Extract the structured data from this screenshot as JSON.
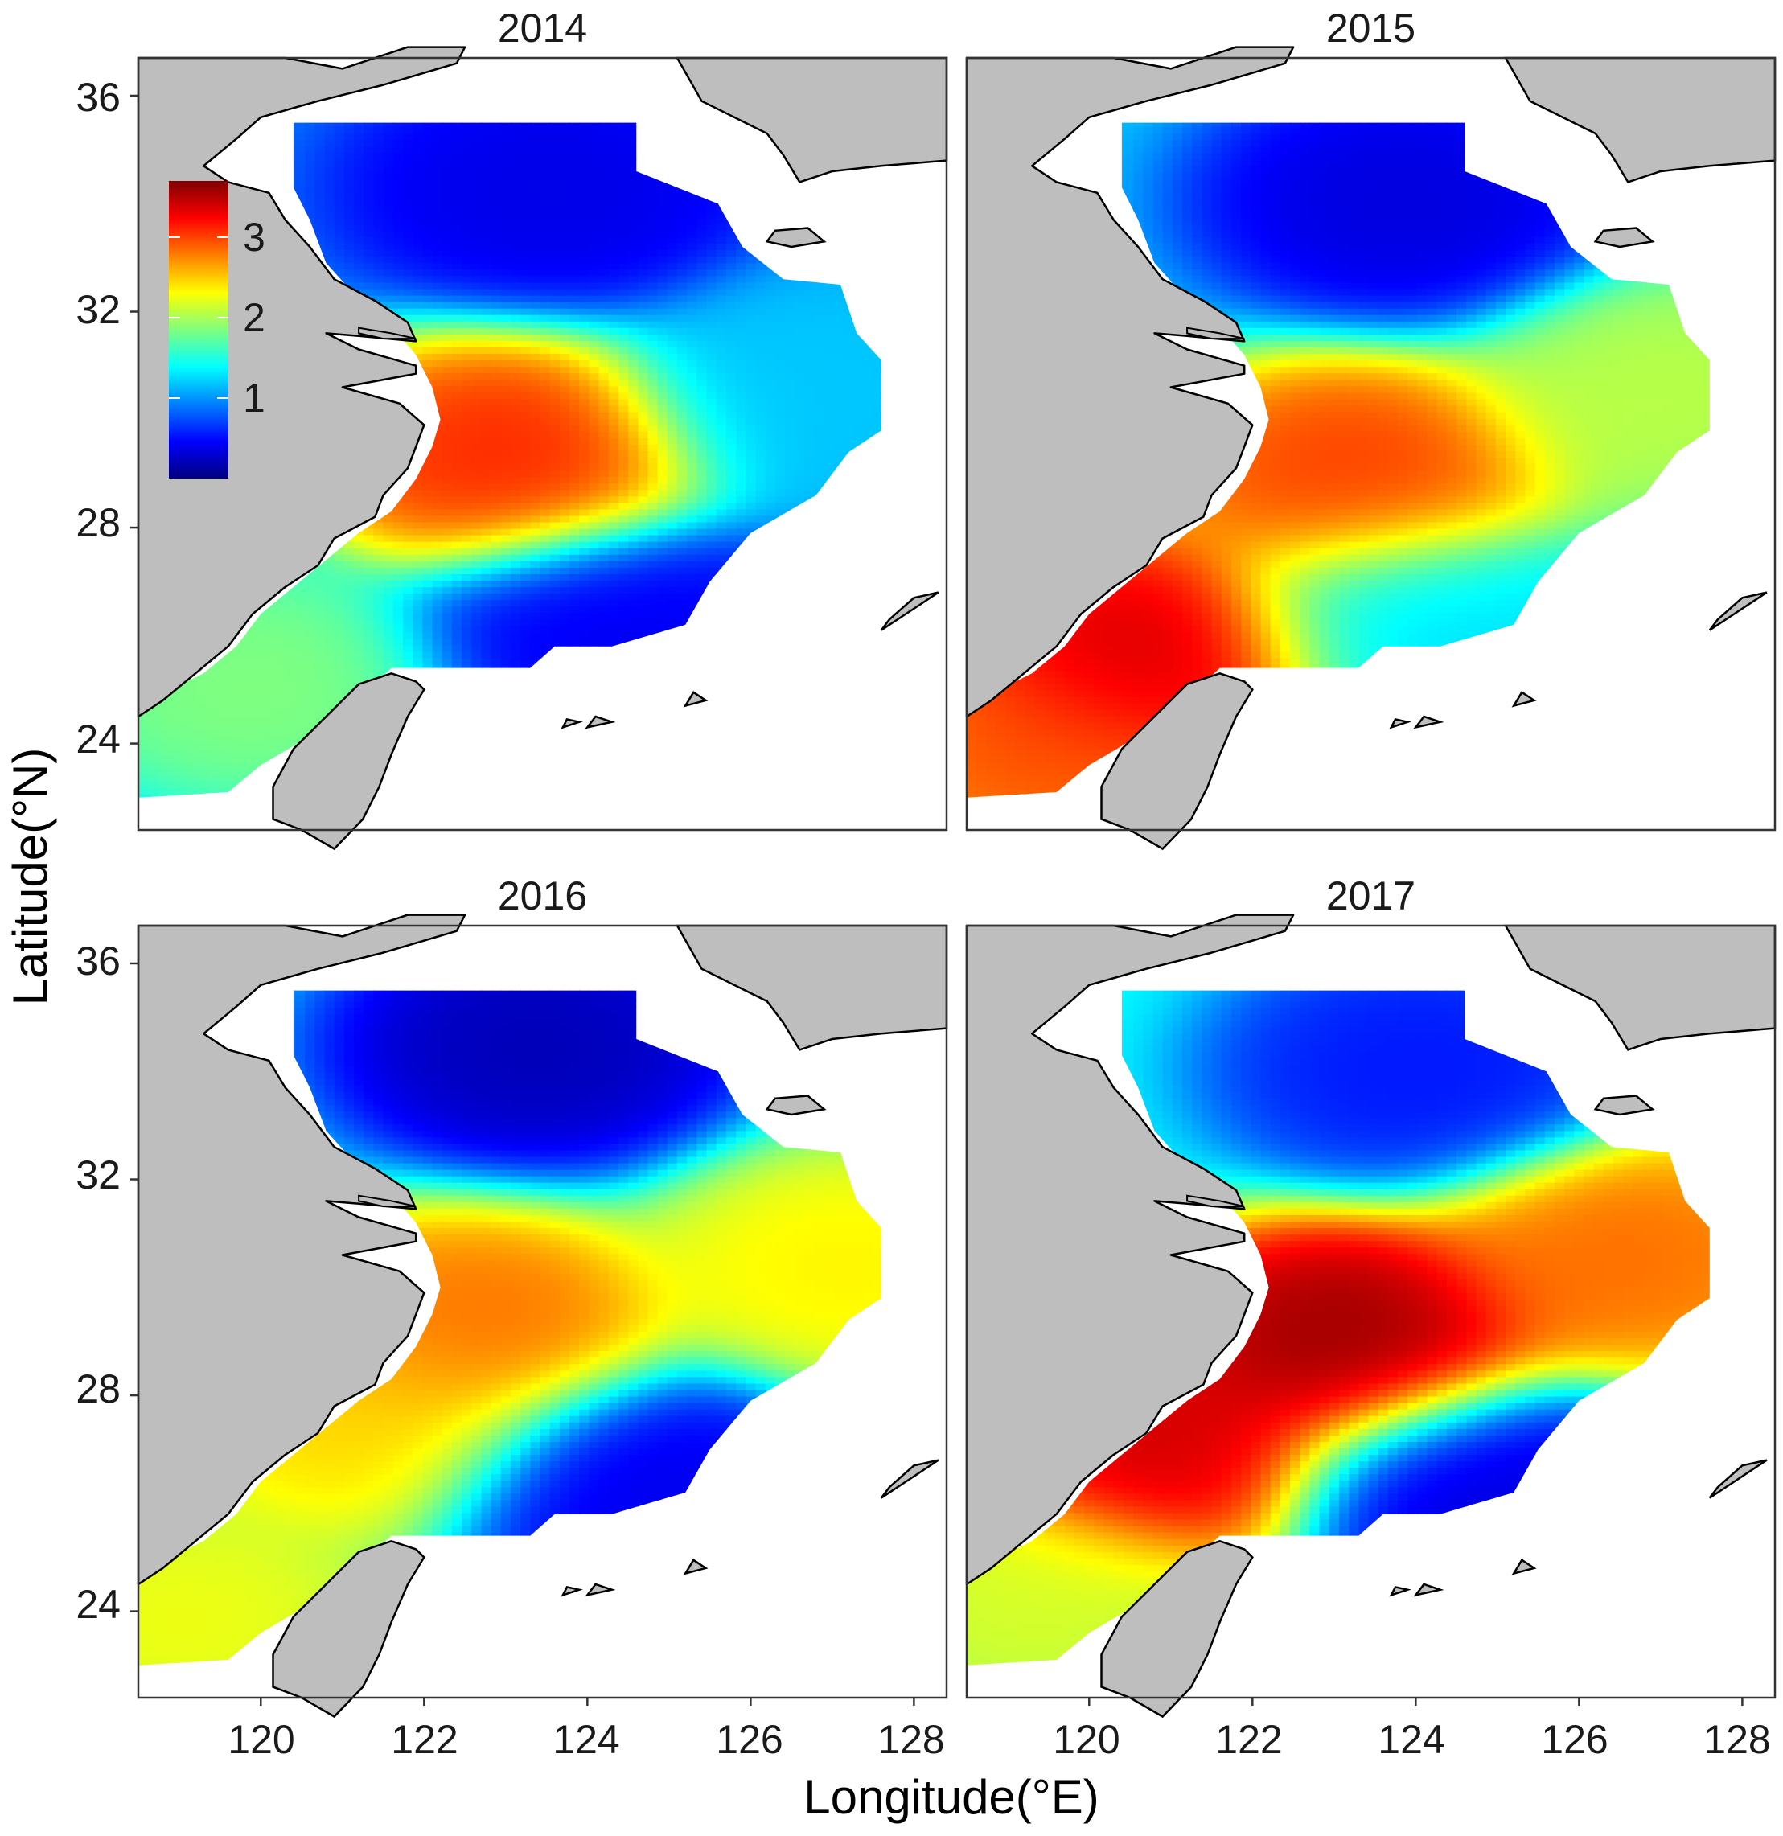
{
  "figure": {
    "xlabel": "Longitude(°E)",
    "ylabel": "Latitude(°N)",
    "x_ticks": [
      "120",
      "122",
      "124",
      "126",
      "128"
    ],
    "y_ticks": [
      "36",
      "32",
      "28",
      "24"
    ],
    "colors": {
      "land": "#bebebe",
      "water": "#ffffff",
      "coastline": "#000000",
      "frame": "#333333"
    },
    "colorbar": {
      "ticks": [
        "3",
        "2",
        "1"
      ],
      "tick_values": [
        3,
        2,
        1
      ],
      "range": [
        0,
        3.7
      ],
      "palette": [
        "#00007f",
        "#0000ff",
        "#007fff",
        "#00ffff",
        "#7fff7f",
        "#ffff00",
        "#ff7f00",
        "#ff0000",
        "#7f0000"
      ],
      "placement": "inside top-left of first panel"
    }
  },
  "chart_data": {
    "type": "heatmap",
    "xlabel": "Longitude(°E)",
    "ylabel": "Latitude(°N)",
    "xlim": [
      118.5,
      128.4
    ],
    "ylim": [
      22.4,
      36.7
    ],
    "grid": false,
    "panels": [
      {
        "title": "2014",
        "background": 0.95,
        "hotspots": [
          {
            "lon": 122.9,
            "lat": 29.3,
            "value": 3.2
          },
          {
            "lon": 119.8,
            "lat": 25.0,
            "value": 1.9
          },
          {
            "lon": 126.8,
            "lat": 30.5,
            "value": 1.2
          },
          {
            "lon": 123.5,
            "lat": 34.2,
            "value": 0.35
          },
          {
            "lon": 124.3,
            "lat": 26.0,
            "value": 0.4
          }
        ]
      },
      {
        "title": "2015",
        "background": 1.2,
        "hotspots": [
          {
            "lon": 123.2,
            "lat": 28.9,
            "value": 3.1
          },
          {
            "lon": 120.6,
            "lat": 25.6,
            "value": 3.5
          },
          {
            "lon": 119.3,
            "lat": 23.8,
            "value": 3.0
          },
          {
            "lon": 127.0,
            "lat": 30.4,
            "value": 2.1
          },
          {
            "lon": 123.8,
            "lat": 34.0,
            "value": 0.3
          },
          {
            "lon": 124.0,
            "lat": 26.2,
            "value": 1.3
          }
        ]
      },
      {
        "title": "2016",
        "background": 1.3,
        "hotspots": [
          {
            "lon": 122.5,
            "lat": 29.2,
            "value": 2.9
          },
          {
            "lon": 121.1,
            "lat": 27.5,
            "value": 2.5
          },
          {
            "lon": 127.1,
            "lat": 30.3,
            "value": 2.4
          },
          {
            "lon": 119.0,
            "lat": 23.8,
            "value": 2.3
          },
          {
            "lon": 123.3,
            "lat": 34.4,
            "value": 0.15
          },
          {
            "lon": 124.6,
            "lat": 26.3,
            "value": 0.35
          }
        ]
      },
      {
        "title": "2017",
        "background": 1.4,
        "hotspots": [
          {
            "lon": 123.1,
            "lat": 29.0,
            "value": 3.7
          },
          {
            "lon": 120.6,
            "lat": 27.0,
            "value": 3.5
          },
          {
            "lon": 126.5,
            "lat": 30.5,
            "value": 2.9
          },
          {
            "lon": 119.2,
            "lat": 24.3,
            "value": 2.2
          },
          {
            "lon": 124.0,
            "lat": 34.0,
            "value": 0.5
          },
          {
            "lon": 124.8,
            "lat": 26.2,
            "value": 0.3
          }
        ]
      }
    ]
  }
}
